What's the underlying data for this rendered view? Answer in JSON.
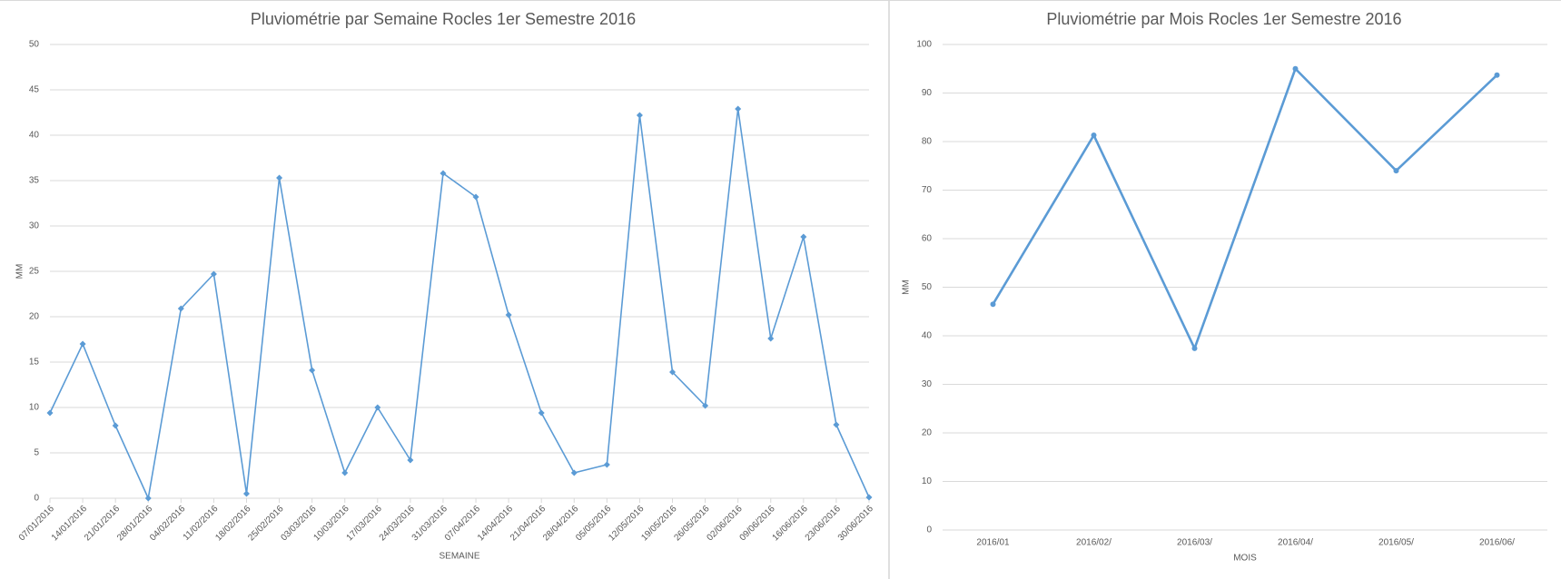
{
  "chart_data": [
    {
      "type": "line",
      "title": "Pluviométrie par Semaine Rocles 1er Semestre 2016",
      "x_label": "SEMAINE",
      "y_label": "MM",
      "categories": [
        "07/01/2016",
        "14/01/2016",
        "21/01/2016",
        "28/01/2016",
        "04/02/2016",
        "11/02/2016",
        "18/02/2016",
        "25/02/2016",
        "03/03/2016",
        "10/03/2016",
        "17/03/2016",
        "24/03/2016",
        "31/03/2016",
        "07/04/2016",
        "14/04/2016",
        "21/04/2016",
        "28/04/2016",
        "05/05/2016",
        "12/05/2016",
        "19/05/2016",
        "26/05/2016",
        "02/06/2016",
        "09/06/2016",
        "16/06/2016",
        "23/06/2016",
        "30/06/2016"
      ],
      "values": [
        9.4,
        17,
        8,
        0,
        20.9,
        24.7,
        0.5,
        35.3,
        14.1,
        2.8,
        10,
        4.2,
        35.8,
        33.2,
        20.2,
        9.4,
        2.8,
        3.7,
        42.2,
        13.9,
        10.2,
        42.9,
        17.6,
        28.8,
        8.1,
        0.1
      ],
      "color": "#5b9bd5",
      "ylim": [
        0,
        50
      ],
      "yticks": [
        0,
        5,
        10,
        15,
        20,
        25,
        30,
        35,
        40,
        45,
        50
      ],
      "grid": true
    },
    {
      "type": "line",
      "title": "Pluviométrie par Mois Rocles 1er Semestre 2016",
      "x_label": "MOIS",
      "y_label": "MM",
      "categories": [
        "2016/01",
        "2016/02/",
        "2016/03/",
        "2016/04/",
        "2016/05/",
        "2016/06/"
      ],
      "values": [
        46.5,
        81.3,
        37.4,
        95,
        74,
        93.7
      ],
      "color": "#5b9bd5",
      "ylim": [
        0,
        100
      ],
      "yticks": [
        0,
        10,
        20,
        30,
        40,
        50,
        60,
        70,
        80,
        90,
        100
      ],
      "grid": true
    }
  ]
}
